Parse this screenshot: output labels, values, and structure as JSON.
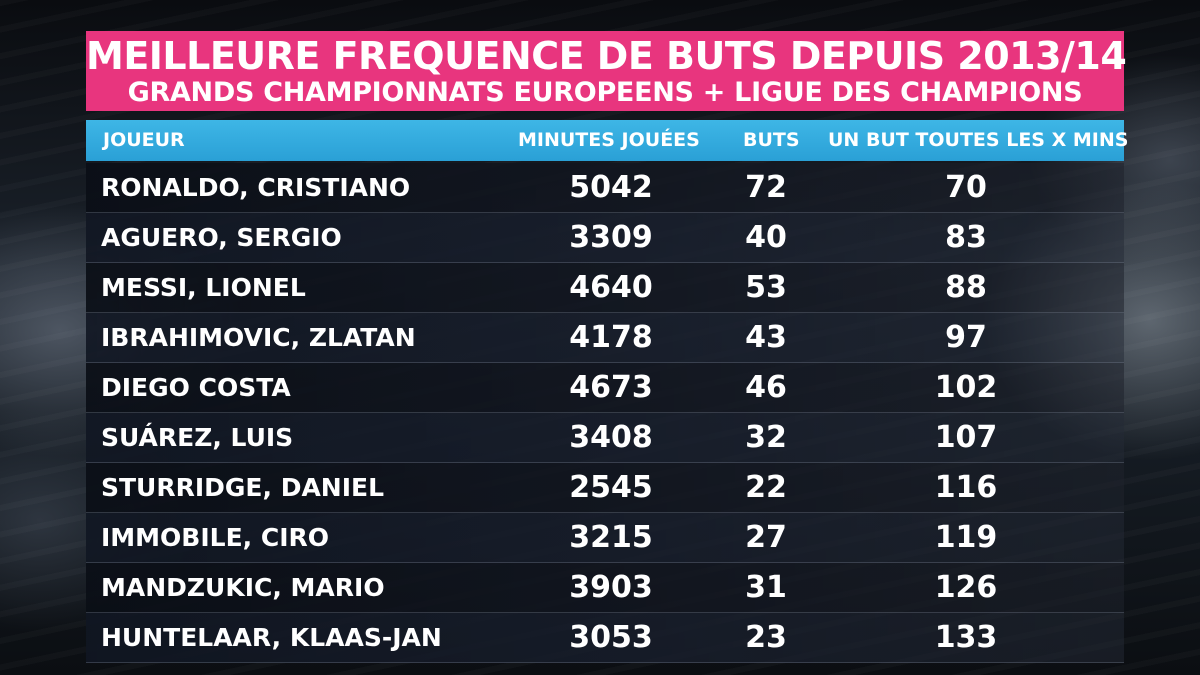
{
  "title": {
    "line1": "MEILLEURE FREQUENCE DE BUTS DEPUIS 2013/14",
    "line2": "GRANDS CHAMPIONNATS EUROPEENS + LIGUE DES CHAMPIONS"
  },
  "colors": {
    "title_banner": "#e8357e",
    "header_row": "#2aa0d6",
    "text": "#ffffff"
  },
  "table": {
    "headers": {
      "player": "JOUEUR",
      "minutes": "MINUTES JOUÉES",
      "goals": "BUTS",
      "frequency": "UN BUT TOUTES LES X MINS"
    },
    "rows": [
      {
        "player": "RONALDO, CRISTIANO",
        "minutes": "5042",
        "goals": "72",
        "frequency": "70"
      },
      {
        "player": "AGUERO, SERGIO",
        "minutes": "3309",
        "goals": "40",
        "frequency": "83"
      },
      {
        "player": "MESSI, LIONEL",
        "minutes": "4640",
        "goals": "53",
        "frequency": "88"
      },
      {
        "player": "IBRAHIMOVIC, ZLATAN",
        "minutes": "4178",
        "goals": "43",
        "frequency": "97"
      },
      {
        "player": "DIEGO COSTA",
        "minutes": "4673",
        "goals": "46",
        "frequency": "102"
      },
      {
        "player": "SUÁREZ, LUIS",
        "minutes": "3408",
        "goals": "32",
        "frequency": "107"
      },
      {
        "player": "STURRIDGE, DANIEL",
        "minutes": "2545",
        "goals": "22",
        "frequency": "116"
      },
      {
        "player": "IMMOBILE, CIRO",
        "minutes": "3215",
        "goals": "27",
        "frequency": "119"
      },
      {
        "player": "MANDZUKIC, MARIO",
        "minutes": "3903",
        "goals": "31",
        "frequency": "126"
      },
      {
        "player": "HUNTELAAR, KLAAS-JAN",
        "minutes": "3053",
        "goals": "23",
        "frequency": "133"
      }
    ]
  }
}
